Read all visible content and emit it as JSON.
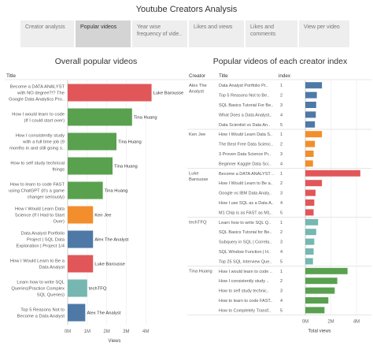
{
  "page_title": "Youtube Creators Analysis",
  "tabs": [
    {
      "label": "Creator analysis",
      "active": false
    },
    {
      "label": "Popular videos",
      "active": true
    },
    {
      "label": "Year wise frequency of vide..",
      "active": false
    },
    {
      "label": "Likes and views",
      "active": false
    },
    {
      "label": "Likes and comments",
      "active": false
    },
    {
      "label": "View per video",
      "active": false
    }
  ],
  "colors": {
    "Luke Barousse": "#e15759",
    "Tina Huang": "#59a14f",
    "Ken Jee": "#f28e2b",
    "Alex The Analyst": "#4e79a7",
    "techTFQ": "#76b7b2"
  },
  "chart_data": [
    {
      "type": "bar",
      "orientation": "horizontal",
      "title": "Overall popular videos",
      "row_header": "Title",
      "xlabel": "Views",
      "xlim": [
        0,
        4800000
      ],
      "x_ticks": [
        "0M",
        "1M",
        "2M",
        "3M",
        "4M"
      ],
      "rows": [
        {
          "title": [
            "Become a DATA ANALYST",
            "with NO degree?!? The",
            "Google Data Analytics Pro.."
          ],
          "creator": "Luke Barousse",
          "value": 4300000
        },
        {
          "title": [
            "How I would learn to code",
            "(If I could start over)"
          ],
          "creator": "Tina Huang",
          "value": 3300000
        },
        {
          "title": [
            "How I consistently study",
            "with a full time job (9",
            "months in and still going s.."
          ],
          "creator": "Tina Huang",
          "value": 2500000
        },
        {
          "title": [
            "How to self study technical",
            "things"
          ],
          "creator": "Tina Huang",
          "value": 2300000
        },
        {
          "title": [
            "How to learn to code FAST",
            "using ChatGPT (it's a game",
            "changer seriously)"
          ],
          "creator": "Tina Huang",
          "value": 1800000
        },
        {
          "title": [
            "How I Would Learn Data",
            "Science (If I Had to Start",
            "Over)"
          ],
          "creator": "Ken Jee",
          "value": 1300000
        },
        {
          "title": [
            "Data Analyst Portfolio",
            "Project | SQL Data",
            "Exploration | Project 1/4"
          ],
          "creator": "Alex The Analyst",
          "value": 1300000
        },
        {
          "title": [
            "How I Would Learn to Be a",
            "Data Analyst"
          ],
          "creator": "Luke Barousse",
          "value": 1300000
        },
        {
          "title": [
            "Learn how to write SQL",
            "Queries(Practice Complex",
            "SQL Queries)"
          ],
          "creator": "techTFQ",
          "value": 1000000
        },
        {
          "title": [
            "Top 5 Reasons Not to",
            "Become a Data Analyst"
          ],
          "creator": "Alex The Analyst",
          "value": 900000
        }
      ]
    },
    {
      "type": "bar",
      "orientation": "horizontal",
      "title": "Popular videos of each creator index",
      "col_headers": [
        "Creator",
        "Title",
        "index"
      ],
      "xlabel": "Total views",
      "xlim": [
        0,
        4800000
      ],
      "x_ticks": [
        "0M",
        "2M",
        "4M"
      ],
      "groups": [
        {
          "creator": [
            "Alex The",
            "Analyst"
          ],
          "color_key": "Alex The Analyst",
          "rows": [
            {
              "title": "Data Analyst Portfolio Pr..",
              "index": "1",
              "value": 1300000
            },
            {
              "title": "Top 5 Reasons Not to Be..",
              "index": "2",
              "value": 900000
            },
            {
              "title": "SQL Basics Tutorial For Be..",
              "index": "3",
              "value": 850000
            },
            {
              "title": "What Does a Data Analyst..",
              "index": "4",
              "value": 820000
            },
            {
              "title": "Data Scientist vs Data An..",
              "index": "5",
              "value": 750000
            }
          ]
        },
        {
          "creator": [
            "Ken Jee"
          ],
          "color_key": "Ken Jee",
          "rows": [
            {
              "title": "How I Would Learn Data S..",
              "index": "1",
              "value": 1300000
            },
            {
              "title": "The Best Free Data Scienc..",
              "index": "2",
              "value": 750000
            },
            {
              "title": "3 Proven Data Science Pr..",
              "index": "3",
              "value": 650000
            },
            {
              "title": "Beginner Kaggle Data Sci..",
              "index": "4",
              "value": 600000
            }
          ]
        },
        {
          "creator": [
            "Luke",
            "Barousse"
          ],
          "color_key": "Luke Barousse",
          "rows": [
            {
              "title": "Become a DATA ANALYST ..",
              "index": "1",
              "value": 4300000
            },
            {
              "title": "How I Would Learn to Be a..",
              "index": "2",
              "value": 1300000
            },
            {
              "title": "Google vs IBM Data Analy..",
              "index": "3",
              "value": 800000
            },
            {
              "title": "How I use SQL as a Data A..",
              "index": "4",
              "value": 700000
            },
            {
              "title": "M1 Chip is as FAST as M1..",
              "index": "5",
              "value": 650000
            }
          ]
        },
        {
          "creator": [
            "techTFQ"
          ],
          "color_key": "techTFQ",
          "rows": [
            {
              "title": "Learn how to write SQL Q..",
              "index": "1",
              "value": 1000000
            },
            {
              "title": "SQL Basics Tutorial for Be..",
              "index": "2",
              "value": 850000
            },
            {
              "title": "Subquery in SQL | Correla..",
              "index": "3",
              "value": 700000
            },
            {
              "title": "SQL Window Function | H..",
              "index": "4",
              "value": 650000
            },
            {
              "title": "Top 25 SQL Interview Que..",
              "index": "5",
              "value": 600000
            }
          ]
        },
        {
          "creator": [
            "Tina Huang"
          ],
          "color_key": "Tina Huang",
          "rows": [
            {
              "title": "How I would learn to code ..",
              "index": "1",
              "value": 3300000
            },
            {
              "title": "How I consistently study ..",
              "index": "2",
              "value": 2500000
            },
            {
              "title": "How to self study technic..",
              "index": "3",
              "value": 2300000
            },
            {
              "title": "How to learn to code FAST..",
              "index": "4",
              "value": 1800000
            },
            {
              "title": "How to Completely Transf..",
              "index": "5",
              "value": 1500000
            }
          ]
        }
      ]
    }
  ]
}
